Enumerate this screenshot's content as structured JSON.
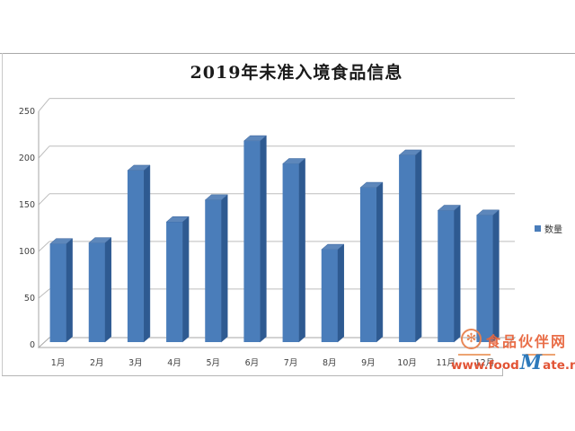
{
  "chart_data": {
    "type": "bar",
    "style": "3d-column",
    "title": "2019年未准入境食品信息",
    "categories": [
      "1月",
      "2月",
      "3月",
      "4月",
      "5月",
      "6月",
      "7月",
      "8月",
      "9月",
      "10月",
      "11月",
      "12月"
    ],
    "series": [
      {
        "name": "数量",
        "values": [
          103,
          104,
          180,
          126,
          149,
          211,
          187,
          97,
          162,
          196,
          138,
          133
        ]
      }
    ],
    "xlabel": "",
    "ylabel": "",
    "ylim": [
      0,
      250
    ],
    "yticks": [
      0,
      50,
      100,
      150,
      200,
      250
    ],
    "grid": true,
    "legend_position": "right",
    "colors": {
      "bar_front": "#4a7dba",
      "bar_side": "#2e5a91",
      "bar_top": "#5d87bb",
      "bar_edge": "#3b659c",
      "gridline": "#bdbdbd",
      "axis": "#a6a6a6",
      "tick_text": "#404040"
    }
  },
  "watermark": {
    "site_name": "食品伙伴网",
    "url_part1": "www.food",
    "url_m": "M",
    "url_part2": "ate.net",
    "logo_icon": "✻",
    "colors": {
      "orange": "#e8814e",
      "red": "#e14b2b",
      "blue": "#2272b8"
    }
  }
}
